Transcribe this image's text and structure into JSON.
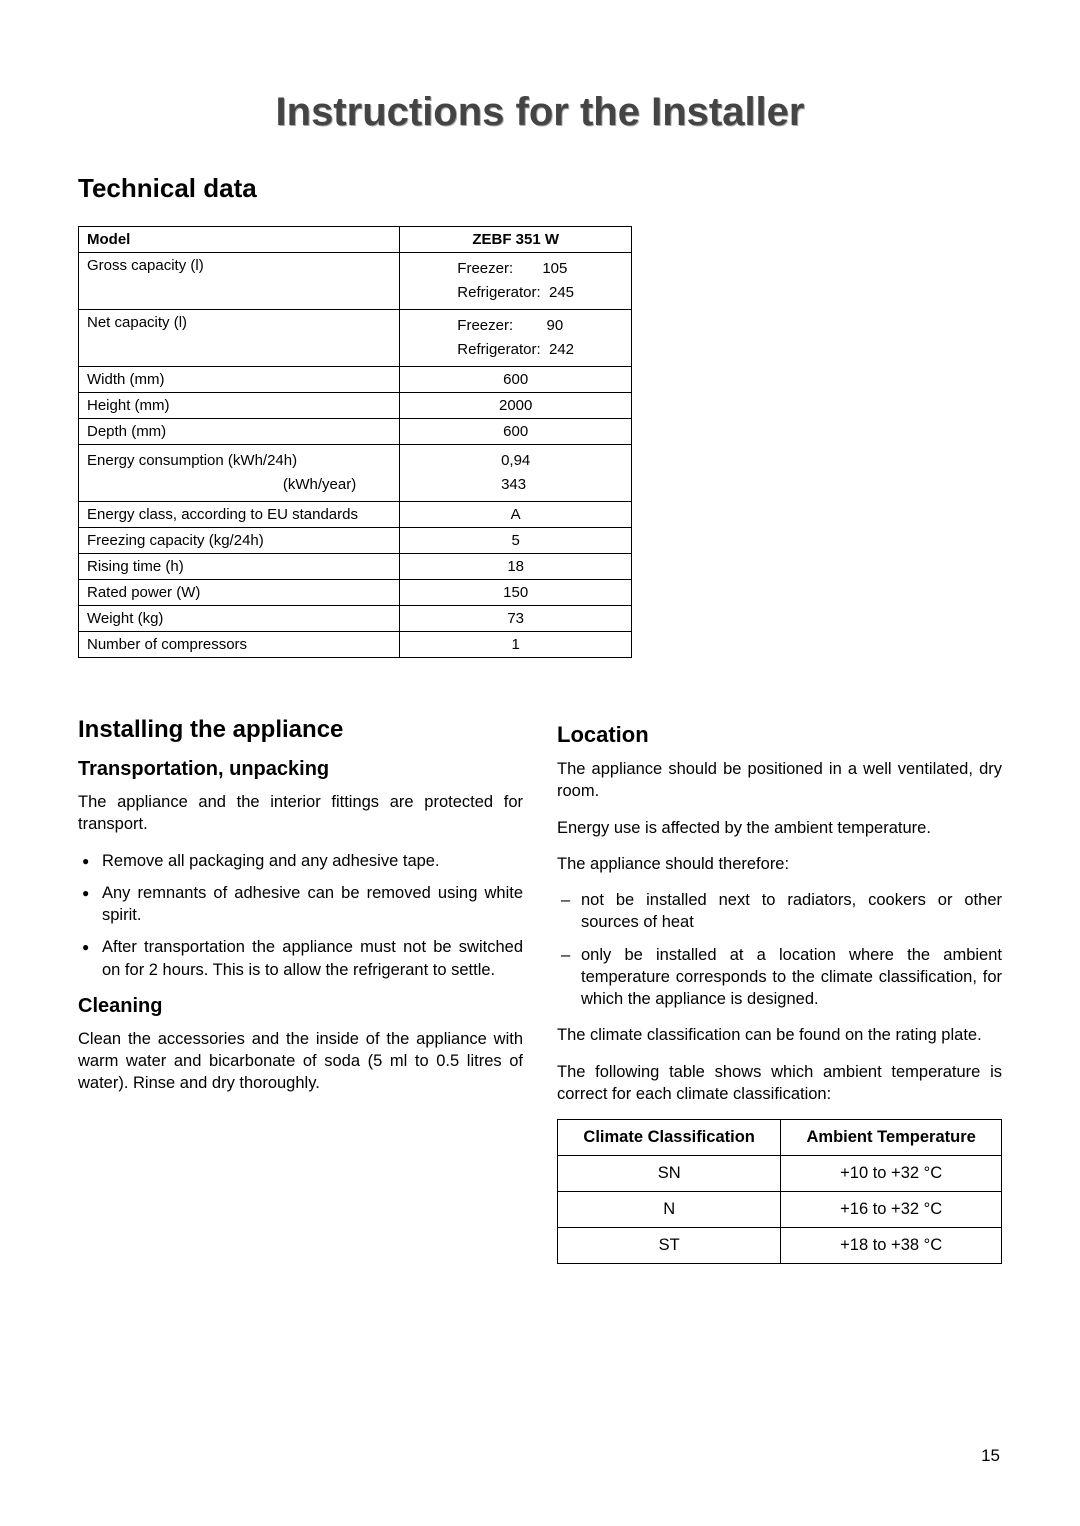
{
  "title": "Instructions for the Installer",
  "tech": {
    "heading": "Technical data",
    "header": {
      "c1": "Model",
      "c2": "ZEBF 351 W"
    },
    "rows": [
      {
        "label": "Gross capacity (l)",
        "value": "Freezer:       105\nRefrigerator:  245",
        "multi": true
      },
      {
        "label": "Net capacity (l)",
        "value": "Freezer:        90\nRefrigerator:  242",
        "multi": true
      },
      {
        "label": "Width (mm)",
        "value": "600"
      },
      {
        "label": "Height (mm)",
        "value": "2000"
      },
      {
        "label": "Depth (mm)",
        "value": "600"
      },
      {
        "label": "Energy consumption (kWh/24h)\n                                               (kWh/year)",
        "value": "0,94\n343",
        "multi": true,
        "multiLabel": true
      },
      {
        "label": "Energy class, according to EU standards",
        "value": "A"
      },
      {
        "label": "Freezing capacity (kg/24h)",
        "value": "5"
      },
      {
        "label": "Rising time (h)",
        "value": "18"
      },
      {
        "label": "Rated power (W)",
        "value": "150"
      },
      {
        "label": "Weight (kg)",
        "value": "73"
      },
      {
        "label": "Number of compressors",
        "value": "1"
      }
    ]
  },
  "left": {
    "h2": "Installing the appliance",
    "transport": {
      "h3": "Transportation, unpacking",
      "p1": "The appliance and the interior fittings are protected for transport.",
      "bullets": [
        "Remove all packaging and any adhesive tape.",
        "Any remnants of adhesive can be removed using white spirit.",
        "After transportation the appliance must not be switched on for 2 hours. This is to allow the refrigerant to settle."
      ]
    },
    "cleaning": {
      "h3": "Cleaning",
      "p1": "Clean the accessories and the inside of the appliance with warm water and bicarbonate of soda (5 ml to 0.5 litres of water). Rinse and dry thoroughly."
    }
  },
  "right": {
    "h3": "Location",
    "p1": "The appliance should be positioned in a well ventilated, dry room.",
    "p2": "Energy use is affected by the ambient temperature.",
    "p3": "The appliance should therefore:",
    "dashes": [
      "not be installed next to radiators, cookers or other sources of heat",
      "only be installed at a location where the ambient temperature corresponds to the climate classification, for which the appliance is designed."
    ],
    "p4": "The climate classification can be found on the rating plate.",
    "p5": "The following table shows which ambient temperature is correct for each climate classification:"
  },
  "climate": {
    "h1": "Climate Classification",
    "h2": "Ambient Temperature",
    "rows": [
      {
        "c1": "SN",
        "c2": "+10 to +32 °C"
      },
      {
        "c1": "N",
        "c2": "+16 to +32 °C"
      },
      {
        "c1": "ST",
        "c2": "+18 to +38 °C"
      }
    ]
  },
  "pageNumber": "15"
}
